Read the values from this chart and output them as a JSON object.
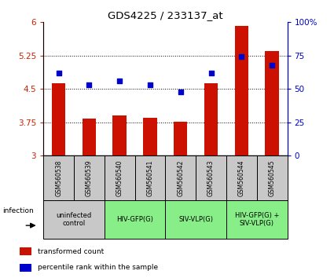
{
  "title": "GDS4225 / 233137_at",
  "samples": [
    "GSM560538",
    "GSM560539",
    "GSM560540",
    "GSM560541",
    "GSM560542",
    "GSM560543",
    "GSM560544",
    "GSM560545"
  ],
  "transformed_counts": [
    4.62,
    3.83,
    3.9,
    3.86,
    3.77,
    4.63,
    5.92,
    5.35
  ],
  "percentile_ranks": [
    62,
    53,
    56,
    53,
    48,
    62,
    74,
    68
  ],
  "ylim_left": [
    3,
    6
  ],
  "ylim_right": [
    0,
    100
  ],
  "yticks_left": [
    3,
    3.75,
    4.5,
    5.25,
    6
  ],
  "yticks_right": [
    0,
    25,
    50,
    75,
    100
  ],
  "bar_color": "#cc1100",
  "dot_color": "#0000cc",
  "background_label": "#c8c8c8",
  "background_uninfected": "#c8c8c8",
  "background_green": "#99ee88",
  "groups": [
    {
      "label": "uninfected\ncontrol",
      "start": 0,
      "end": 2,
      "color": "#c8c8c8"
    },
    {
      "label": "HIV-GFP(G)",
      "start": 2,
      "end": 4,
      "color": "#88ee88"
    },
    {
      "label": "SIV-VLP(G)",
      "start": 4,
      "end": 6,
      "color": "#88ee88"
    },
    {
      "label": "HIV-GFP(G) +\nSIV-VLP(G)",
      "start": 6,
      "end": 8,
      "color": "#88ee88"
    }
  ],
  "legend_red_label": "transformed count",
  "legend_blue_label": "percentile rank within the sample",
  "infection_label": "infection"
}
